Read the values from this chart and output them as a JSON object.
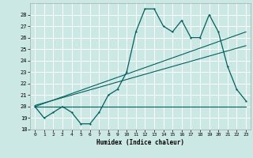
{
  "title": "",
  "xlabel": "Humidex (Indice chaleur)",
  "background_color": "#cce8e4",
  "grid_color": "#ffffff",
  "line_color": "#006060",
  "xlim": [
    -0.5,
    23.5
  ],
  "ylim": [
    18,
    29
  ],
  "xticks": [
    0,
    1,
    2,
    3,
    4,
    5,
    6,
    7,
    8,
    9,
    10,
    11,
    12,
    13,
    14,
    15,
    16,
    17,
    18,
    19,
    20,
    21,
    22,
    23
  ],
  "yticks": [
    18,
    19,
    20,
    21,
    22,
    23,
    24,
    25,
    26,
    27,
    28
  ],
  "main_series": [
    [
      0,
      20.0
    ],
    [
      1,
      19.0
    ],
    [
      2,
      19.5
    ],
    [
      3,
      20.0
    ],
    [
      4,
      19.5
    ],
    [
      5,
      18.5
    ],
    [
      6,
      18.5
    ],
    [
      7,
      19.5
    ],
    [
      8,
      21.0
    ],
    [
      9,
      21.5
    ],
    [
      10,
      23.0
    ],
    [
      11,
      26.5
    ],
    [
      12,
      28.5
    ],
    [
      13,
      28.5
    ],
    [
      14,
      27.0
    ],
    [
      15,
      26.5
    ],
    [
      16,
      27.5
    ],
    [
      17,
      26.0
    ],
    [
      18,
      26.0
    ],
    [
      19,
      28.0
    ],
    [
      20,
      26.5
    ],
    [
      21,
      23.5
    ],
    [
      22,
      21.5
    ],
    [
      23,
      20.5
    ]
  ],
  "regression_line1": [
    [
      0,
      20.0
    ],
    [
      23,
      26.5
    ]
  ],
  "regression_line2": [
    [
      0,
      20.1
    ],
    [
      23,
      25.3
    ]
  ],
  "flat_line": [
    [
      0,
      20.0
    ],
    [
      23,
      20.0
    ]
  ]
}
